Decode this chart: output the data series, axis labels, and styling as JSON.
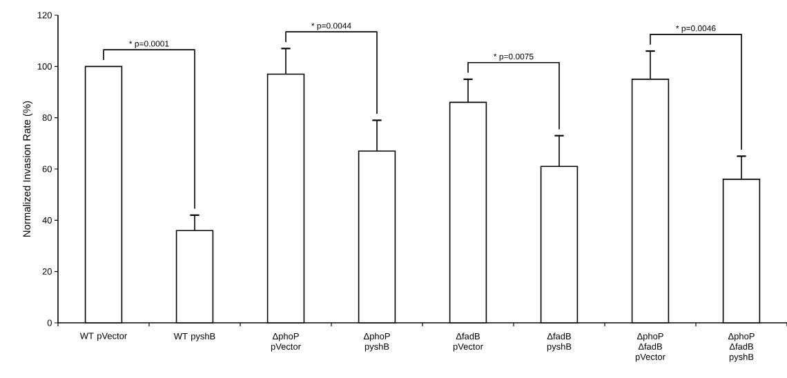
{
  "chart_data": {
    "type": "bar",
    "ylabel": "Normalized Invasion Rate (%)",
    "categories": [
      "WT pVector",
      "WT pyshB",
      "ΔphoP pVector",
      "ΔphoP pyshB",
      "ΔfadB pVector",
      "ΔfadB pyshB",
      "ΔphoP ΔfadB pVector",
      "ΔphoP ΔfadB pyshB"
    ],
    "values": [
      100,
      36,
      97,
      67,
      86,
      61,
      95,
      56
    ],
    "errors": [
      null,
      [
        36,
        42
      ],
      [
        97,
        107
      ],
      [
        67,
        79
      ],
      [
        86,
        95
      ],
      [
        61,
        73
      ],
      [
        95,
        106
      ],
      [
        56,
        65
      ]
    ],
    "color": "#ffffff",
    "ylim": [
      0,
      120
    ],
    "yticks": [
      0,
      20,
      40,
      60,
      80,
      100,
      120
    ],
    "annotations": [
      "* p=0.0001",
      "* p=0.0044",
      "* p=0.0075",
      "* p=0.0046"
    ]
  }
}
